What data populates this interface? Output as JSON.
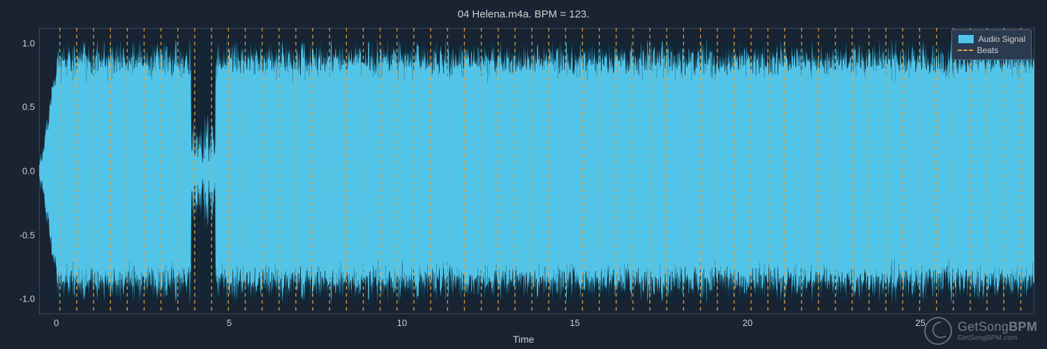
{
  "chart": {
    "type": "waveform",
    "title": "04 Helena.m4a. BPM = 123.",
    "xlabel": "Time",
    "background_color": "#1a2332",
    "text_color": "#d0d0d0",
    "axis_color": "#d0d0d0",
    "xlim": [
      -0.5,
      28.3
    ],
    "ylim": [
      -1.12,
      1.12
    ],
    "xticks": [
      0,
      5,
      10,
      15,
      20,
      25
    ],
    "yticks": [
      -1.0,
      -0.5,
      0.0,
      0.5,
      1.0
    ],
    "tick_fontsize": 13,
    "title_fontsize": 15,
    "label_fontsize": 14,
    "waveform": {
      "color_fill": "#52c4e8",
      "color_edge": "#0a2a3a",
      "quiet_section": {
        "start": 3.9,
        "end": 4.6,
        "amplitude": 0.25
      },
      "baseline_amplitude": 0.97,
      "noise_floor": 0.8,
      "sample_count": 2400
    },
    "beats": {
      "color": "#e8a33c",
      "linestyle": "dashed",
      "linewidth": 1.4,
      "bpm": 123,
      "interval_s": 0.4878,
      "first_beat": 0.1
    },
    "legend": {
      "position": "upper-right",
      "background": "#2a3a4f",
      "border": "#5a6a7a",
      "items": [
        {
          "label": "Audio Signal",
          "swatch": "solid",
          "color": "#52c4e8"
        },
        {
          "label": "Beats",
          "swatch": "dashed",
          "color": "#e8a33c"
        }
      ]
    }
  },
  "watermark": {
    "brand_top": "GetSong",
    "brand_bottom": "BPM",
    "url": "GetSongBPM.com",
    "color": "#e0e5ea",
    "opacity": 0.45
  }
}
